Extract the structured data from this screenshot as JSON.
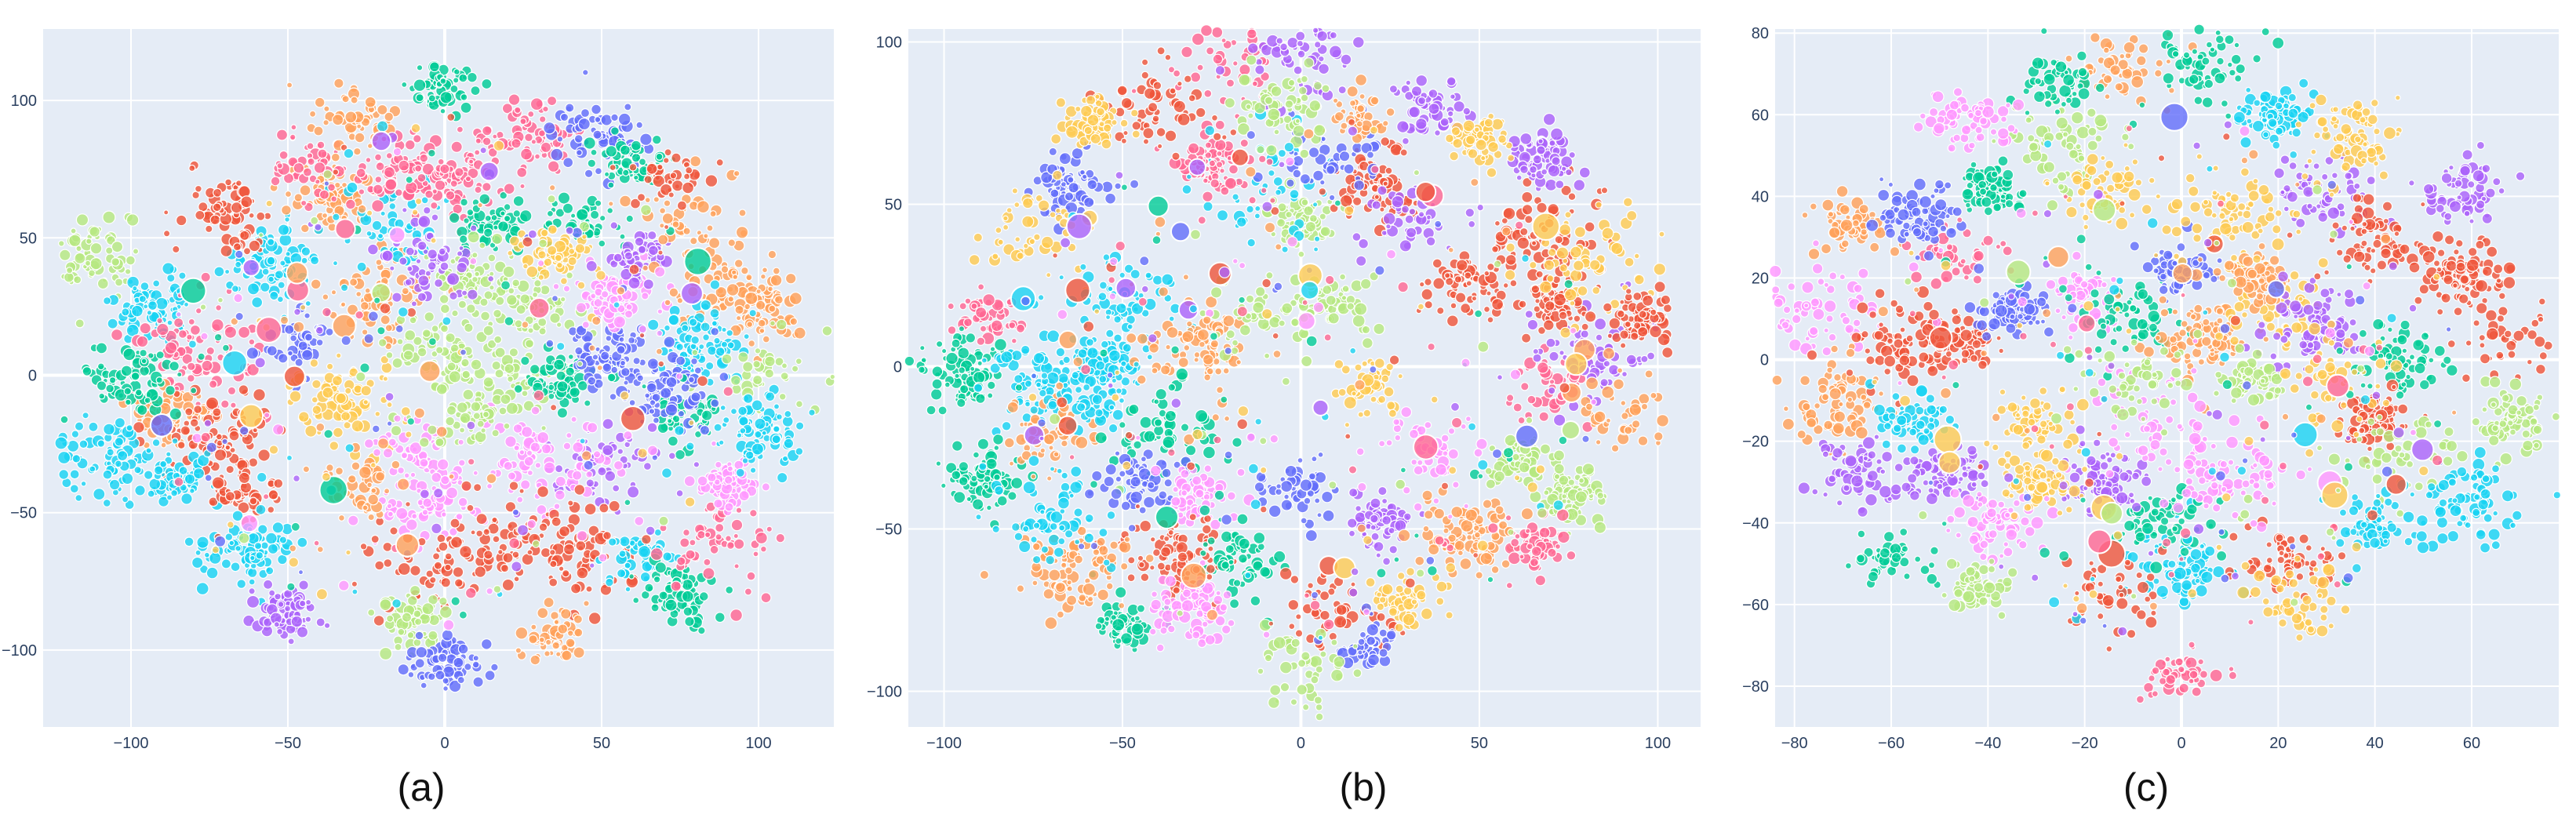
{
  "palette": [
    "#636efa",
    "#ef553b",
    "#00cc96",
    "#ab63fa",
    "#ffa15a",
    "#19d3f3",
    "#ff6692",
    "#b6e880",
    "#ff97ff",
    "#fecb52"
  ],
  "chart_data": [
    {
      "type": "scatter",
      "caption": "(a)",
      "xlim": [
        -128,
        124
      ],
      "ylim": [
        -128,
        126
      ],
      "xticks": [
        -100,
        -50,
        0,
        50,
        100
      ],
      "yticks": [
        -100,
        -50,
        0,
        50,
        100
      ],
      "xtick_labels": [
        "−100",
        "−50",
        "0",
        "50",
        "100"
      ],
      "ytick_labels": [
        "−100",
        "−50",
        "0",
        "50",
        "100"
      ],
      "grid": true,
      "seed": 11,
      "clusters": [
        {
          "x": -112,
          "y": 44,
          "c": 7
        },
        {
          "x": -94,
          "y": 25,
          "c": 5
        },
        {
          "x": -80,
          "y": 8,
          "c": 6
        },
        {
          "x": -90,
          "y": -15,
          "c": 4
        },
        {
          "x": -72,
          "y": -24,
          "c": 1
        },
        {
          "x": -84,
          "y": -38,
          "c": 5
        },
        {
          "x": -63,
          "y": -42,
          "c": 1
        },
        {
          "x": -62,
          "y": -64,
          "c": 5
        },
        {
          "x": -50,
          "y": -86,
          "c": 3
        },
        {
          "x": -55,
          "y": 40,
          "c": 5
        },
        {
          "x": -45,
          "y": 10,
          "c": 0
        },
        {
          "x": -30,
          "y": -10,
          "c": 9
        },
        {
          "x": -23,
          "y": 28,
          "c": 4
        },
        {
          "x": -35,
          "y": 65,
          "c": 4
        },
        {
          "x": -18,
          "y": 56,
          "c": 5
        },
        {
          "x": -15,
          "y": 75,
          "c": 6
        },
        {
          "x": 5,
          "y": 72,
          "c": 6
        },
        {
          "x": 15,
          "y": 55,
          "c": 2
        },
        {
          "x": 10,
          "y": 35,
          "c": 7
        },
        {
          "x": 27,
          "y": 25,
          "c": 7
        },
        {
          "x": 0,
          "y": 10,
          "c": 7
        },
        {
          "x": 22,
          "y": 0,
          "c": 7
        },
        {
          "x": 38,
          "y": -3,
          "c": 2
        },
        {
          "x": 52,
          "y": 8,
          "c": 0
        },
        {
          "x": 55,
          "y": 30,
          "c": 8
        },
        {
          "x": 45,
          "y": 55,
          "c": 2
        },
        {
          "x": 62,
          "y": 43,
          "c": 3
        },
        {
          "x": 83,
          "y": 35,
          "c": 4
        },
        {
          "x": 100,
          "y": 25,
          "c": 4
        },
        {
          "x": 80,
          "y": 12,
          "c": 5
        },
        {
          "x": 103,
          "y": 2,
          "c": 7
        },
        {
          "x": 75,
          "y": -15,
          "c": 2
        },
        {
          "x": 52,
          "y": -32,
          "c": 3
        },
        {
          "x": 30,
          "y": -30,
          "c": 8
        },
        {
          "x": -10,
          "y": -30,
          "c": 8
        },
        {
          "x": -5,
          "y": -45,
          "c": 8
        },
        {
          "x": 20,
          "y": -60,
          "c": 1
        },
        {
          "x": -5,
          "y": -70,
          "c": 1
        },
        {
          "x": 42,
          "y": -65,
          "c": 1
        },
        {
          "x": 62,
          "y": -65,
          "c": 5
        },
        {
          "x": 75,
          "y": -78,
          "c": 2
        },
        {
          "x": 85,
          "y": -62,
          "c": 6
        },
        {
          "x": 90,
          "y": -40,
          "c": 8
        },
        {
          "x": 35,
          "y": -95,
          "c": 4
        },
        {
          "x": -10,
          "y": -88,
          "c": 7
        },
        {
          "x": 0,
          "y": -105,
          "c": 0
        },
        {
          "x": -68,
          "y": 60,
          "c": 1
        },
        {
          "x": -45,
          "y": 75,
          "c": 6
        },
        {
          "x": 28,
          "y": 88,
          "c": 6
        },
        {
          "x": 50,
          "y": 88,
          "c": 0
        },
        {
          "x": 58,
          "y": 78,
          "c": 2
        },
        {
          "x": 80,
          "y": 60,
          "c": 4
        },
        {
          "x": 72,
          "y": 72,
          "c": 1
        },
        {
          "x": -28,
          "y": 95,
          "c": 4
        },
        {
          "x": 0,
          "y": 105,
          "c": 2
        },
        {
          "x": -25,
          "y": -40,
          "c": 4
        },
        {
          "x": 8,
          "y": -15,
          "c": 7
        },
        {
          "x": -5,
          "y": 40,
          "c": 3
        },
        {
          "x": 35,
          "y": 45,
          "c": 9
        },
        {
          "x": 70,
          "y": -5,
          "c": 0
        },
        {
          "x": -100,
          "y": -2,
          "c": 2
        },
        {
          "x": -105,
          "y": -30,
          "c": 5
        },
        {
          "x": 100,
          "y": -20,
          "c": 5
        }
      ]
    },
    {
      "type": "scatter",
      "caption": "(b)",
      "xlim": [
        -110,
        112
      ],
      "ylim": [
        -111,
        104
      ],
      "xticks": [
        -100,
        -50,
        0,
        50,
        100
      ],
      "yticks": [
        -100,
        -50,
        0,
        50,
        100
      ],
      "xtick_labels": [
        "−100",
        "−50",
        "0",
        "50",
        "100"
      ],
      "ytick_labels": [
        "−100",
        "−50",
        "0",
        "50",
        "100"
      ],
      "grid": true,
      "seed": 23,
      "clusters": [
        {
          "x": -88,
          "y": 15,
          "c": 6
        },
        {
          "x": -95,
          "y": -2,
          "c": 2
        },
        {
          "x": -75,
          "y": -5,
          "c": 5
        },
        {
          "x": -90,
          "y": -35,
          "c": 2
        },
        {
          "x": -72,
          "y": -20,
          "c": 4
        },
        {
          "x": -65,
          "y": 55,
          "c": 0
        },
        {
          "x": -75,
          "y": 40,
          "c": 9
        },
        {
          "x": -50,
          "y": 20,
          "c": 5
        },
        {
          "x": -55,
          "y": 0,
          "c": 5
        },
        {
          "x": -30,
          "y": 5,
          "c": 4
        },
        {
          "x": -38,
          "y": -18,
          "c": 2
        },
        {
          "x": -45,
          "y": -35,
          "c": 0
        },
        {
          "x": -28,
          "y": -40,
          "c": 8
        },
        {
          "x": -35,
          "y": -58,
          "c": 1
        },
        {
          "x": -18,
          "y": -60,
          "c": 2
        },
        {
          "x": 0,
          "y": -38,
          "c": 0
        },
        {
          "x": 22,
          "y": -48,
          "c": 3
        },
        {
          "x": 10,
          "y": -75,
          "c": 1
        },
        {
          "x": 28,
          "y": -72,
          "c": 9
        },
        {
          "x": 48,
          "y": -52,
          "c": 4
        },
        {
          "x": 62,
          "y": -30,
          "c": 7
        },
        {
          "x": 70,
          "y": -5,
          "c": 6
        },
        {
          "x": 82,
          "y": 5,
          "c": 3
        },
        {
          "x": 72,
          "y": 20,
          "c": 1
        },
        {
          "x": 45,
          "y": 25,
          "c": 1
        },
        {
          "x": 35,
          "y": -25,
          "c": 8
        },
        {
          "x": 20,
          "y": -5,
          "c": 9
        },
        {
          "x": 10,
          "y": 20,
          "c": 7
        },
        {
          "x": 0,
          "y": 45,
          "c": 7
        },
        {
          "x": -10,
          "y": 55,
          "c": 5
        },
        {
          "x": 20,
          "y": 55,
          "c": 1
        },
        {
          "x": 5,
          "y": 63,
          "c": 0
        },
        {
          "x": 35,
          "y": 80,
          "c": 3
        },
        {
          "x": 15,
          "y": 78,
          "c": 4
        },
        {
          "x": -25,
          "y": 62,
          "c": 6
        },
        {
          "x": -20,
          "y": 95,
          "c": 6
        },
        {
          "x": 0,
          "y": 98,
          "c": 3
        },
        {
          "x": 65,
          "y": 40,
          "c": 1
        },
        {
          "x": 68,
          "y": 63,
          "c": 3
        },
        {
          "x": 80,
          "y": 32,
          "c": 9
        },
        {
          "x": 95,
          "y": 15,
          "c": 1
        },
        {
          "x": 90,
          "y": -15,
          "c": 4
        },
        {
          "x": 75,
          "y": -40,
          "c": 7
        },
        {
          "x": 65,
          "y": -55,
          "c": 6
        },
        {
          "x": 18,
          "y": -87,
          "c": 0
        },
        {
          "x": 0,
          "y": -95,
          "c": 7
        },
        {
          "x": -50,
          "y": -80,
          "c": 2
        },
        {
          "x": -30,
          "y": -75,
          "c": 8
        },
        {
          "x": -65,
          "y": -62,
          "c": 4
        },
        {
          "x": -70,
          "y": -45,
          "c": 5
        },
        {
          "x": -40,
          "y": 80,
          "c": 1
        },
        {
          "x": 50,
          "y": 70,
          "c": 9
        },
        {
          "x": -58,
          "y": 75,
          "c": 9
        },
        {
          "x": -5,
          "y": 80,
          "c": 7
        },
        {
          "x": 30,
          "y": 45,
          "c": 3
        },
        {
          "x": -10,
          "y": 15,
          "c": 7
        },
        {
          "x": -60,
          "y": -10,
          "c": 5
        }
      ]
    },
    {
      "type": "scatter",
      "caption": "(c)",
      "xlim": [
        -84,
        78
      ],
      "ylim": [
        -90,
        81
      ],
      "xticks": [
        -80,
        -60,
        -40,
        -20,
        0,
        20,
        40,
        60
      ],
      "yticks": [
        -80,
        -60,
        -40,
        -20,
        0,
        20,
        40,
        60,
        80
      ],
      "xtick_labels": [
        "−80",
        "−60",
        "−40",
        "−20",
        "0",
        "20",
        "40",
        "60"
      ],
      "ytick_labels": [
        "−80",
        "−60",
        "−40",
        "−20",
        "0",
        "20",
        "40",
        "60",
        "80"
      ],
      "grid": true,
      "seed": 37,
      "clusters": [
        {
          "x": -75,
          "y": 12,
          "c": 8
        },
        {
          "x": -70,
          "y": -10,
          "c": 4
        },
        {
          "x": -68,
          "y": 33,
          "c": 4
        },
        {
          "x": -58,
          "y": 4,
          "c": 1
        },
        {
          "x": -48,
          "y": -28,
          "c": 3
        },
        {
          "x": -45,
          "y": 4,
          "c": 1
        },
        {
          "x": -40,
          "y": 42,
          "c": 2
        },
        {
          "x": -38,
          "y": -40,
          "c": 8
        },
        {
          "x": -30,
          "y": -15,
          "c": 9
        },
        {
          "x": -25,
          "y": 52,
          "c": 7
        },
        {
          "x": -20,
          "y": 15,
          "c": 8
        },
        {
          "x": -15,
          "y": 40,
          "c": 9
        },
        {
          "x": -10,
          "y": 10,
          "c": 2
        },
        {
          "x": 0,
          "y": 22,
          "c": 0
        },
        {
          "x": 5,
          "y": 5,
          "c": 4
        },
        {
          "x": 20,
          "y": 12,
          "c": 9
        },
        {
          "x": 28,
          "y": 8,
          "c": 3
        },
        {
          "x": 30,
          "y": 40,
          "c": 3
        },
        {
          "x": 40,
          "y": 30,
          "c": 1
        },
        {
          "x": 45,
          "y": 0,
          "c": 2
        },
        {
          "x": 40,
          "y": -15,
          "c": 1
        },
        {
          "x": 45,
          "y": -25,
          "c": 7
        },
        {
          "x": 58,
          "y": 20,
          "c": 1
        },
        {
          "x": 68,
          "y": 5,
          "c": 1
        },
        {
          "x": 68,
          "y": -15,
          "c": 7
        },
        {
          "x": 58,
          "y": -35,
          "c": 5
        },
        {
          "x": 40,
          "y": -40,
          "c": 5
        },
        {
          "x": 22,
          "y": -50,
          "c": 1
        },
        {
          "x": 0,
          "y": -52,
          "c": 5
        },
        {
          "x": -15,
          "y": -58,
          "c": 1
        },
        {
          "x": -5,
          "y": -40,
          "c": 2
        },
        {
          "x": -15,
          "y": -30,
          "c": 3
        },
        {
          "x": 10,
          "y": -30,
          "c": 8
        },
        {
          "x": -5,
          "y": -15,
          "c": 8
        },
        {
          "x": 15,
          "y": -5,
          "c": 7
        },
        {
          "x": 30,
          "y": -5,
          "c": 9
        },
        {
          "x": -35,
          "y": 12,
          "c": 0
        },
        {
          "x": -30,
          "y": -30,
          "c": 9
        },
        {
          "x": -42,
          "y": -55,
          "c": 7
        },
        {
          "x": -55,
          "y": -15,
          "c": 5
        },
        {
          "x": -65,
          "y": -28,
          "c": 3
        },
        {
          "x": -60,
          "y": -48,
          "c": 2
        },
        {
          "x": -12,
          "y": 72,
          "c": 4
        },
        {
          "x": 5,
          "y": 72,
          "c": 2
        },
        {
          "x": 20,
          "y": 60,
          "c": 5
        },
        {
          "x": 35,
          "y": 55,
          "c": 9
        },
        {
          "x": -25,
          "y": 68,
          "c": 2
        },
        {
          "x": -45,
          "y": 25,
          "c": 6
        },
        {
          "x": 25,
          "y": -60,
          "c": 9
        },
        {
          "x": 0,
          "y": -77,
          "c": 6
        },
        {
          "x": 57,
          "y": 41,
          "c": 3
        },
        {
          "x": -45,
          "y": 58,
          "c": 8
        },
        {
          "x": 10,
          "y": 35,
          "c": 9
        },
        {
          "x": -10,
          "y": -5,
          "c": 7
        },
        {
          "x": 15,
          "y": 20,
          "c": 4
        },
        {
          "x": -55,
          "y": 35,
          "c": 0
        }
      ]
    }
  ]
}
